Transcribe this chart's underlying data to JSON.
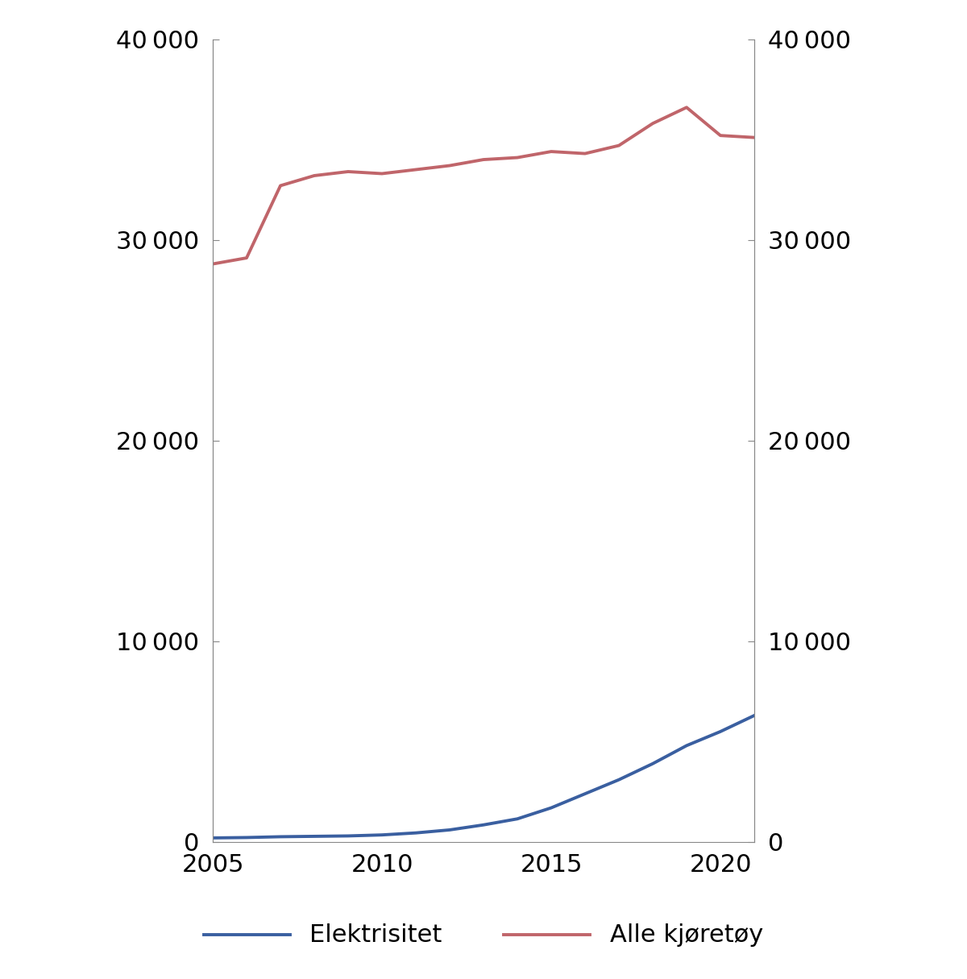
{
  "years": [
    2005,
    2006,
    2007,
    2008,
    2009,
    2010,
    2011,
    2012,
    2013,
    2014,
    2015,
    2016,
    2017,
    2018,
    2019,
    2020,
    2021
  ],
  "elektrisitet": [
    200,
    220,
    260,
    280,
    300,
    350,
    450,
    600,
    850,
    1150,
    1700,
    2400,
    3100,
    3900,
    4800,
    5500,
    6300
  ],
  "alle_kjoretoy": [
    28800,
    29100,
    32700,
    33200,
    33400,
    33300,
    33500,
    33700,
    34000,
    34100,
    34400,
    34300,
    34700,
    35800,
    36600,
    35200,
    35100
  ],
  "elektrisitet_color": "#3a5fa0",
  "alle_kjoretoy_color": "#c0656a",
  "ylim": [
    0,
    40000
  ],
  "yticks": [
    0,
    10000,
    20000,
    30000,
    40000
  ],
  "xlim": [
    2005,
    2021
  ],
  "xticks": [
    2005,
    2010,
    2015,
    2020
  ],
  "legend_elektrisitet": "Elektrisitet",
  "legend_alle": "Alle kjøretøy",
  "background_color": "#ffffff",
  "line_width": 2.8,
  "tick_label_fontsize": 22,
  "legend_fontsize": 22,
  "spine_color": "#888888",
  "tick_color": "#888888"
}
